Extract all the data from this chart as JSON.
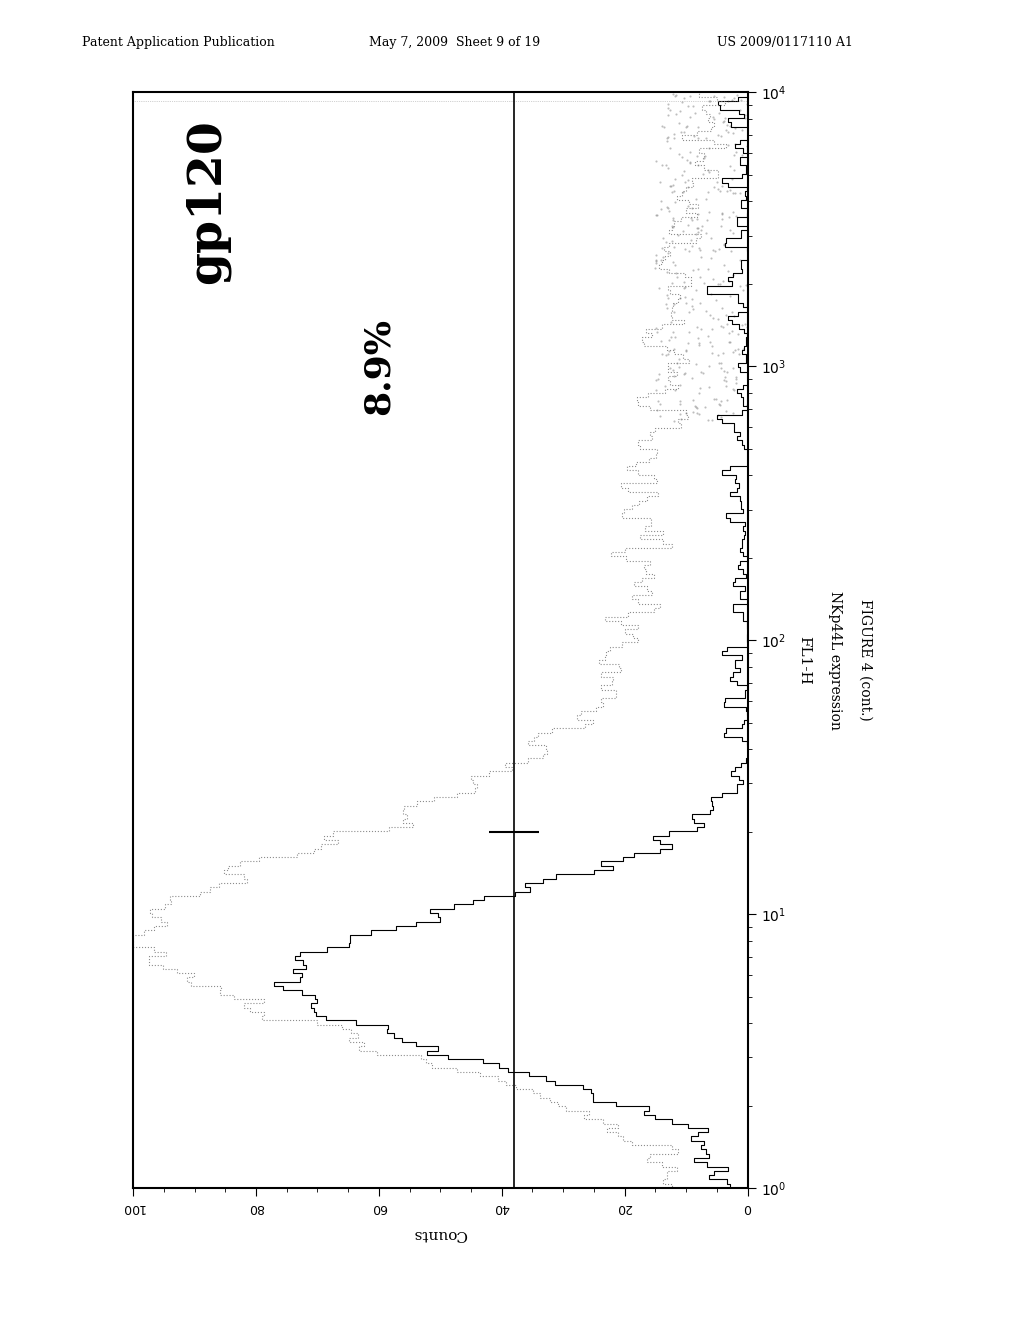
{
  "title_header": "Patent Application Publication",
  "date_header": "May 7, 2009  Sheet 9 of 19",
  "patent_header": "US 2009/0117110 A1",
  "label_gp120": "gp120",
  "label_pct": "8.9%",
  "xlabel_fl": "FL1-H",
  "xlabel_nkp": "NKp44L expression",
  "ylabel": "Counts",
  "figure_label": "FIGURE 4 (cont.)",
  "background_color": "#ffffff"
}
